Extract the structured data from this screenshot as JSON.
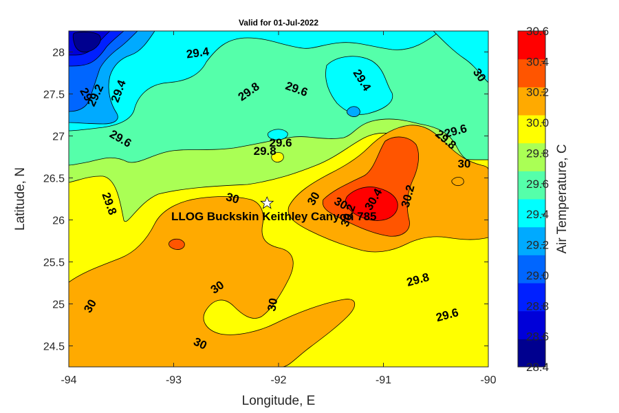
{
  "chart_data": {
    "type": "heatmap",
    "title": "Valid for 01-Jul-2022",
    "xlabel": "Longitude, E",
    "ylabel": "Latitude, N",
    "xlim": [
      -94,
      -90
    ],
    "ylim": [
      24.25,
      28.25
    ],
    "x_ticks": [
      "-94",
      "-93",
      "-92",
      "-91",
      "-90"
    ],
    "y_ticks": [
      "28",
      "27.5",
      "27",
      "26.5",
      "26",
      "25.5",
      "25",
      "24.5"
    ],
    "colorbar": {
      "label": "Air Temperature, C",
      "range": [
        28.4,
        30.6
      ],
      "tick_labels": [
        "30.6",
        "30.4",
        "30.2",
        "30.0",
        "29.8",
        "29.6",
        "29.4",
        "29.2",
        "29.0",
        "28.8",
        "28.6",
        "28.4"
      ],
      "colors": [
        "#00008f",
        "#0000d9",
        "#0020ff",
        "#0066ff",
        "#00aaff",
        "#00ffff",
        "#55ffaa",
        "#aaff55",
        "#ffff00",
        "#ffaa00",
        "#ff5500",
        "#ff0000"
      ]
    },
    "contour_labels": [
      {
        "text": "29.4",
        "lon": -92.77,
        "lat": 27.98,
        "rot": -8
      },
      {
        "text": "29.4",
        "lon": -91.21,
        "lat": 27.66,
        "rot": 58
      },
      {
        "text": "29.8",
        "lon": -92.28,
        "lat": 27.52,
        "rot": -35
      },
      {
        "text": "29.6",
        "lon": -91.83,
        "lat": 27.55,
        "rot": 20
      },
      {
        "text": "29.2",
        "lon": -93.74,
        "lat": 27.48,
        "rot": -65
      },
      {
        "text": "29.4",
        "lon": -93.52,
        "lat": 27.53,
        "rot": -70
      },
      {
        "text": "29",
        "lon": -93.84,
        "lat": 27.49,
        "rot": 60
      },
      {
        "text": "30",
        "lon": -90.09,
        "lat": 27.72,
        "rot": 55
      },
      {
        "text": "29.6",
        "lon": -93.51,
        "lat": 26.96,
        "rot": 30
      },
      {
        "text": "29.6",
        "lon": -90.31,
        "lat": 27.05,
        "rot": -15
      },
      {
        "text": "29.8",
        "lon": -90.41,
        "lat": 26.95,
        "rot": 40
      },
      {
        "text": "29.6",
        "lon": -91.98,
        "lat": 26.91,
        "rot": 0
      },
      {
        "text": "29.8",
        "lon": -92.13,
        "lat": 26.81,
        "rot": 0
      },
      {
        "text": "30",
        "lon": -90.23,
        "lat": 26.66,
        "rot": 0
      },
      {
        "text": "29.8",
        "lon": -93.62,
        "lat": 26.19,
        "rot": 70
      },
      {
        "text": "30",
        "lon": -92.44,
        "lat": 26.25,
        "rot": 15
      },
      {
        "text": "30",
        "lon": -91.66,
        "lat": 26.25,
        "rot": -60
      },
      {
        "text": "30",
        "lon": -91.41,
        "lat": 26.19,
        "rot": 30
      },
      {
        "text": "30.4",
        "lon": -91.09,
        "lat": 26.24,
        "rot": -60
      },
      {
        "text": "30.2",
        "lon": -90.76,
        "lat": 26.28,
        "rot": -75
      },
      {
        "text": "30.2",
        "lon": -91.33,
        "lat": 26.05,
        "rot": -70
      },
      {
        "text": "30",
        "lon": -92.58,
        "lat": 25.19,
        "rot": -35
      },
      {
        "text": "30",
        "lon": -92.05,
        "lat": 24.99,
        "rot": -80
      },
      {
        "text": "29.8",
        "lon": -90.67,
        "lat": 25.28,
        "rot": -15
      },
      {
        "text": "29.6",
        "lon": -90.39,
        "lat": 24.86,
        "rot": -15
      },
      {
        "text": "30",
        "lon": -93.79,
        "lat": 24.97,
        "rot": -60
      },
      {
        "text": "30",
        "lon": -92.75,
        "lat": 24.52,
        "rot": 25
      }
    ],
    "station": {
      "name": "LLOG Buckskin Keithley Canyon 785",
      "lon": -92.11,
      "lat": 26.2
    },
    "grid": false
  }
}
